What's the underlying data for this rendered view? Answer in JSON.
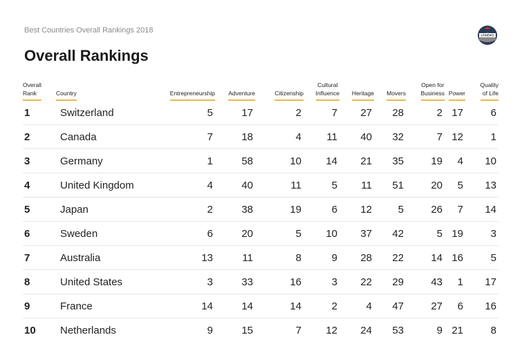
{
  "subtitle": "Best Countries Overall Rankings 2018",
  "logo_text": "USNEWS",
  "title": "Overall Rankings",
  "headers": {
    "rank": [
      "Overall",
      "Rank"
    ],
    "country": "Country",
    "entrepreneurship": "Entrepreneurship",
    "adventure": "Adventure",
    "citizenship": "Citizenship",
    "cultural_influence": [
      "Cultural",
      "Influence"
    ],
    "heritage": "Heritage",
    "movers": "Movers",
    "open_for_business": [
      "Open for",
      "Business"
    ],
    "power": "Power",
    "quality_of_life": [
      "Quality",
      "of Life"
    ]
  },
  "rows": [
    {
      "rank": "1",
      "country": "Switzerland",
      "values": [
        "5",
        "17",
        "2",
        "7",
        "27",
        "28",
        "2",
        "17",
        "6"
      ]
    },
    {
      "rank": "2",
      "country": "Canada",
      "values": [
        "7",
        "18",
        "4",
        "11",
        "40",
        "32",
        "7",
        "12",
        "1"
      ]
    },
    {
      "rank": "3",
      "country": "Germany",
      "values": [
        "1",
        "58",
        "10",
        "14",
        "21",
        "35",
        "19",
        "4",
        "10"
      ]
    },
    {
      "rank": "4",
      "country": "United Kingdom",
      "values": [
        "4",
        "40",
        "11",
        "5",
        "11",
        "51",
        "20",
        "5",
        "13"
      ]
    },
    {
      "rank": "5",
      "country": "Japan",
      "values": [
        "2",
        "38",
        "19",
        "6",
        "12",
        "5",
        "26",
        "7",
        "14"
      ]
    },
    {
      "rank": "6",
      "country": "Sweden",
      "values": [
        "6",
        "20",
        "5",
        "10",
        "37",
        "42",
        "5",
        "19",
        "3"
      ]
    },
    {
      "rank": "7",
      "country": "Australia",
      "values": [
        "13",
        "11",
        "8",
        "9",
        "28",
        "22",
        "14",
        "16",
        "5"
      ]
    },
    {
      "rank": "8",
      "country": "United States",
      "values": [
        "3",
        "33",
        "16",
        "3",
        "22",
        "29",
        "43",
        "1",
        "17"
      ]
    },
    {
      "rank": "9",
      "country": "France",
      "values": [
        "14",
        "14",
        "14",
        "2",
        "4",
        "47",
        "27",
        "6",
        "16"
      ]
    },
    {
      "rank": "10",
      "country": "Netherlands",
      "values": [
        "9",
        "15",
        "7",
        "12",
        "24",
        "53",
        "9",
        "21",
        "8"
      ]
    }
  ],
  "colors": {
    "accent": "#e8b84a",
    "divider": "#e6e6e6"
  }
}
